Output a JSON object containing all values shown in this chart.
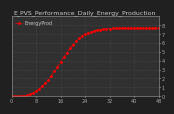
{
  "title": "E_PVS_Performance_Daily_Energy_Production",
  "legend_label": "EnergyProd",
  "x_values": [
    0,
    1,
    2,
    3,
    4,
    5,
    6,
    7,
    8,
    9,
    10,
    11,
    12,
    13,
    14,
    15,
    16,
    17,
    18,
    19,
    20,
    21,
    22,
    23,
    24,
    25,
    26,
    27,
    28,
    29,
    30,
    31,
    32,
    33,
    34,
    35,
    36,
    37,
    38,
    39,
    40,
    41,
    42,
    43,
    44,
    45,
    46,
    47,
    48
  ],
  "y_values": [
    0.0,
    0.0,
    0.0,
    0.02,
    0.05,
    0.12,
    0.22,
    0.38,
    0.58,
    0.82,
    1.12,
    1.48,
    1.88,
    2.32,
    2.8,
    3.32,
    3.85,
    4.38,
    4.9,
    5.38,
    5.82,
    6.2,
    6.52,
    6.78,
    6.98,
    7.14,
    7.26,
    7.36,
    7.44,
    7.5,
    7.55,
    7.59,
    7.62,
    7.64,
    7.66,
    7.67,
    7.68,
    7.68,
    7.68,
    7.68,
    7.68,
    7.68,
    7.68,
    7.68,
    7.68,
    7.68,
    7.68,
    7.68,
    7.68
  ],
  "line_color": "#ff0000",
  "line_style": "--",
  "marker": ".",
  "marker_size": 2,
  "fig_bg_color": "#202020",
  "plot_bg_color": "#303030",
  "grid_color": "#555555",
  "grid_style": ":",
  "xlim": [
    0,
    48
  ],
  "ylim": [
    0,
    9
  ],
  "yticks": [
    0,
    1,
    2,
    3,
    4,
    5,
    6,
    7,
    8
  ],
  "xticks": [
    0,
    8,
    16,
    24,
    32,
    40,
    48
  ],
  "tick_color": "#aaaaaa",
  "tick_fontsize": 3.5,
  "title_fontsize": 4.5,
  "title_color": "#cccccc",
  "legend_fontsize": 3.5,
  "legend_text_color": "#cccccc",
  "spine_color": "#888888"
}
